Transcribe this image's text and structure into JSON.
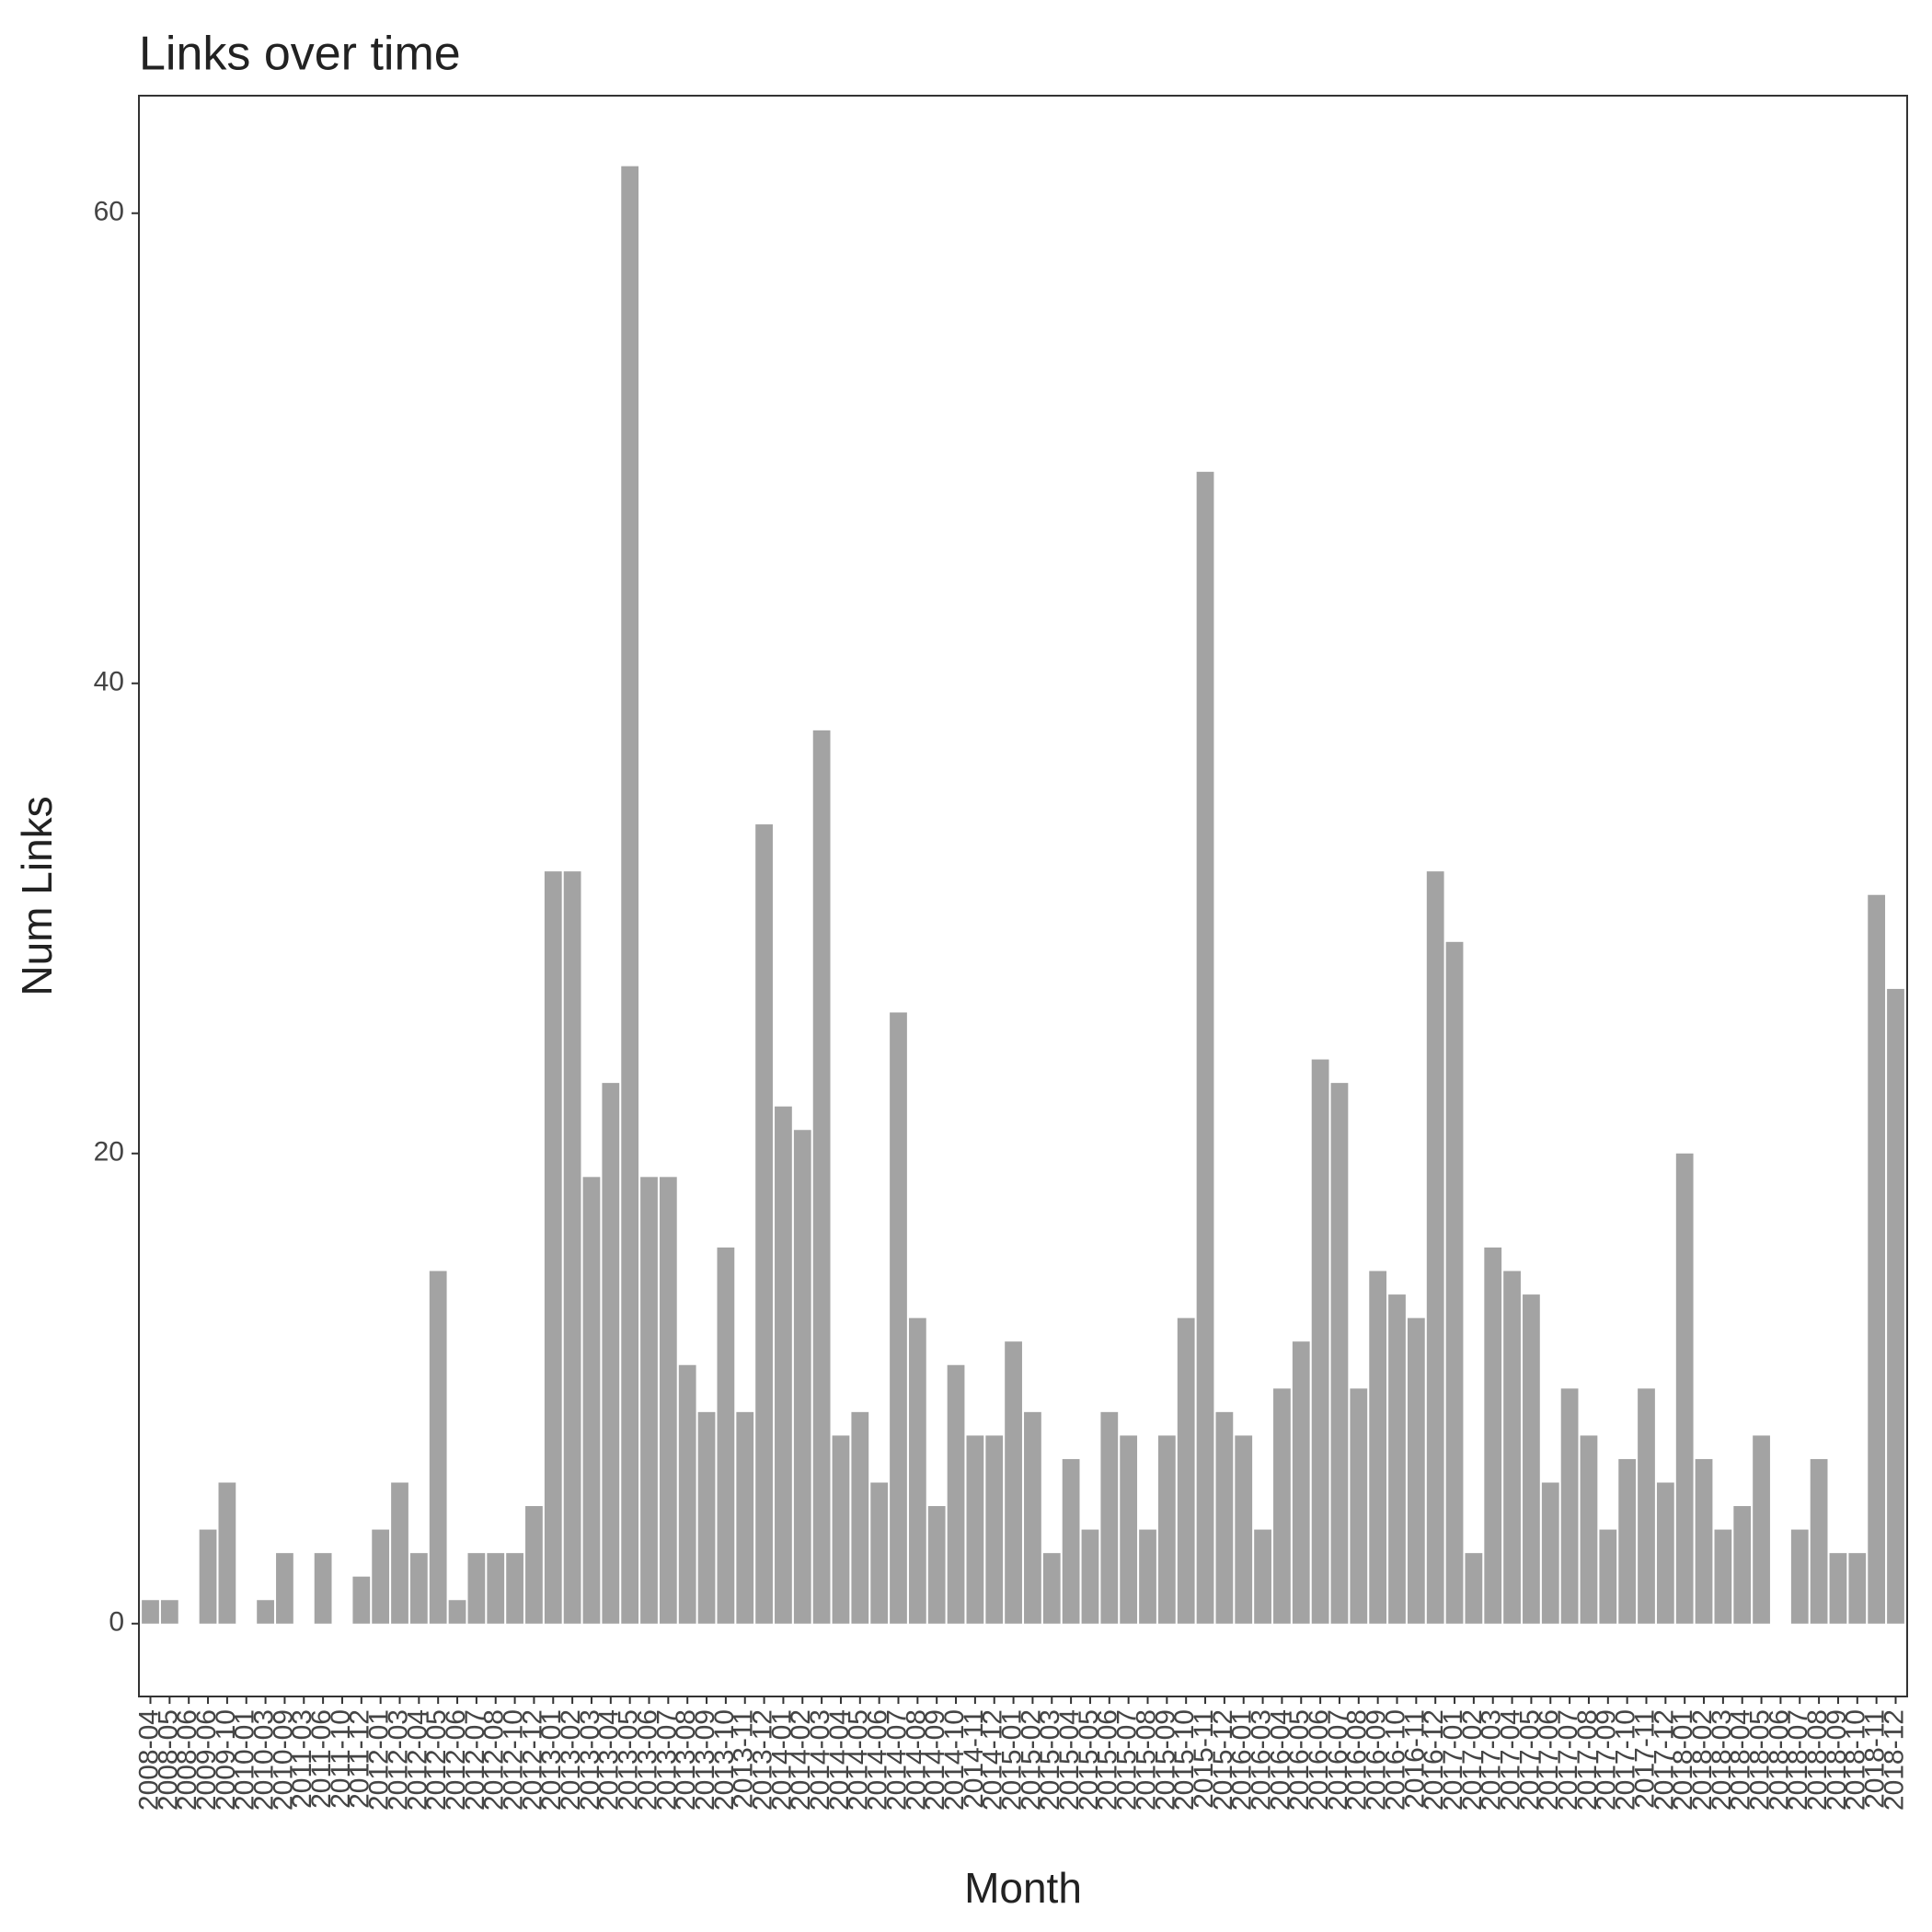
{
  "chart_data": {
    "type": "bar",
    "title": "Links over time",
    "x_label": "Month",
    "y_label": "Num Links",
    "categories": [
      "2008-04",
      "2008-05",
      "2008-06",
      "2009-06",
      "2009-10",
      "2010-01",
      "2010-03",
      "2010-09",
      "2011-03",
      "2011-06",
      "2011-10",
      "2011-12",
      "2012-01",
      "2012-03",
      "2012-04",
      "2012-05",
      "2012-06",
      "2012-07",
      "2012-08",
      "2012-10",
      "2012-12",
      "2013-01",
      "2013-02",
      "2013-03",
      "2013-04",
      "2013-05",
      "2013-06",
      "2013-07",
      "2013-08",
      "2013-09",
      "2013-10",
      "2013-11",
      "2013-12",
      "2014-01",
      "2014-02",
      "2014-03",
      "2014-04",
      "2014-05",
      "2014-06",
      "2014-07",
      "2014-08",
      "2014-09",
      "2014-10",
      "2014-11",
      "2014-12",
      "2015-01",
      "2015-02",
      "2015-03",
      "2015-04",
      "2015-05",
      "2015-06",
      "2015-07",
      "2015-08",
      "2015-09",
      "2015-10",
      "2015-11",
      "2015-12",
      "2016-01",
      "2016-03",
      "2016-04",
      "2016-05",
      "2016-06",
      "2016-07",
      "2016-08",
      "2016-09",
      "2016-10",
      "2016-11",
      "2016-12",
      "2017-01",
      "2017-02",
      "2017-03",
      "2017-04",
      "2017-05",
      "2017-06",
      "2017-07",
      "2017-08",
      "2017-09",
      "2017-10",
      "2017-11",
      "2017-12",
      "2018-01",
      "2018-02",
      "2018-03",
      "2018-04",
      "2018-05",
      "2018-06",
      "2018-07",
      "2018-08",
      "2018-09",
      "2018-10",
      "2018-11",
      "2018-12"
    ],
    "values": [
      1,
      1,
      0,
      4,
      6,
      0,
      1,
      3,
      0,
      3,
      0,
      2,
      4,
      6,
      3,
      15,
      1,
      3,
      3,
      3,
      5,
      32,
      32,
      19,
      23,
      62,
      19,
      19,
      11,
      9,
      16,
      9,
      34,
      22,
      21,
      38,
      8,
      9,
      6,
      26,
      13,
      5,
      11,
      8,
      8,
      12,
      9,
      3,
      7,
      4,
      9,
      8,
      4,
      8,
      13,
      49,
      9,
      8,
      4,
      10,
      12,
      24,
      23,
      10,
      15,
      14,
      13,
      32,
      29,
      3,
      16,
      15,
      14,
      6,
      10,
      8,
      4,
      7,
      10,
      6,
      20,
      7,
      4,
      5,
      8,
      0,
      4,
      7,
      3,
      3,
      31,
      27
    ],
    "color": "#a3a3a3",
    "ylim": [
      -3.1,
      65
    ],
    "yticks": [
      0,
      20,
      40,
      60
    ],
    "grid": false
  }
}
